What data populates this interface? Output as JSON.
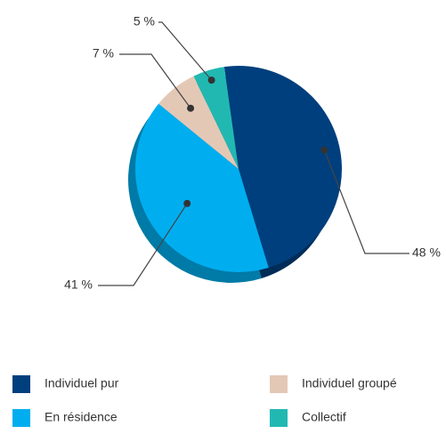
{
  "chart_data": {
    "type": "pie",
    "categories": [
      "Individuel pur",
      "En résidence",
      "Individuel groupé",
      "Collectif"
    ],
    "values": [
      48,
      41,
      7,
      5
    ],
    "value_labels": [
      "48 %",
      "41 %",
      "7 %",
      "5 %"
    ],
    "colors": [
      "#003f7d",
      "#00aeef",
      "#e4c8b6",
      "#22b8b2"
    ],
    "legend": "bottom"
  }
}
